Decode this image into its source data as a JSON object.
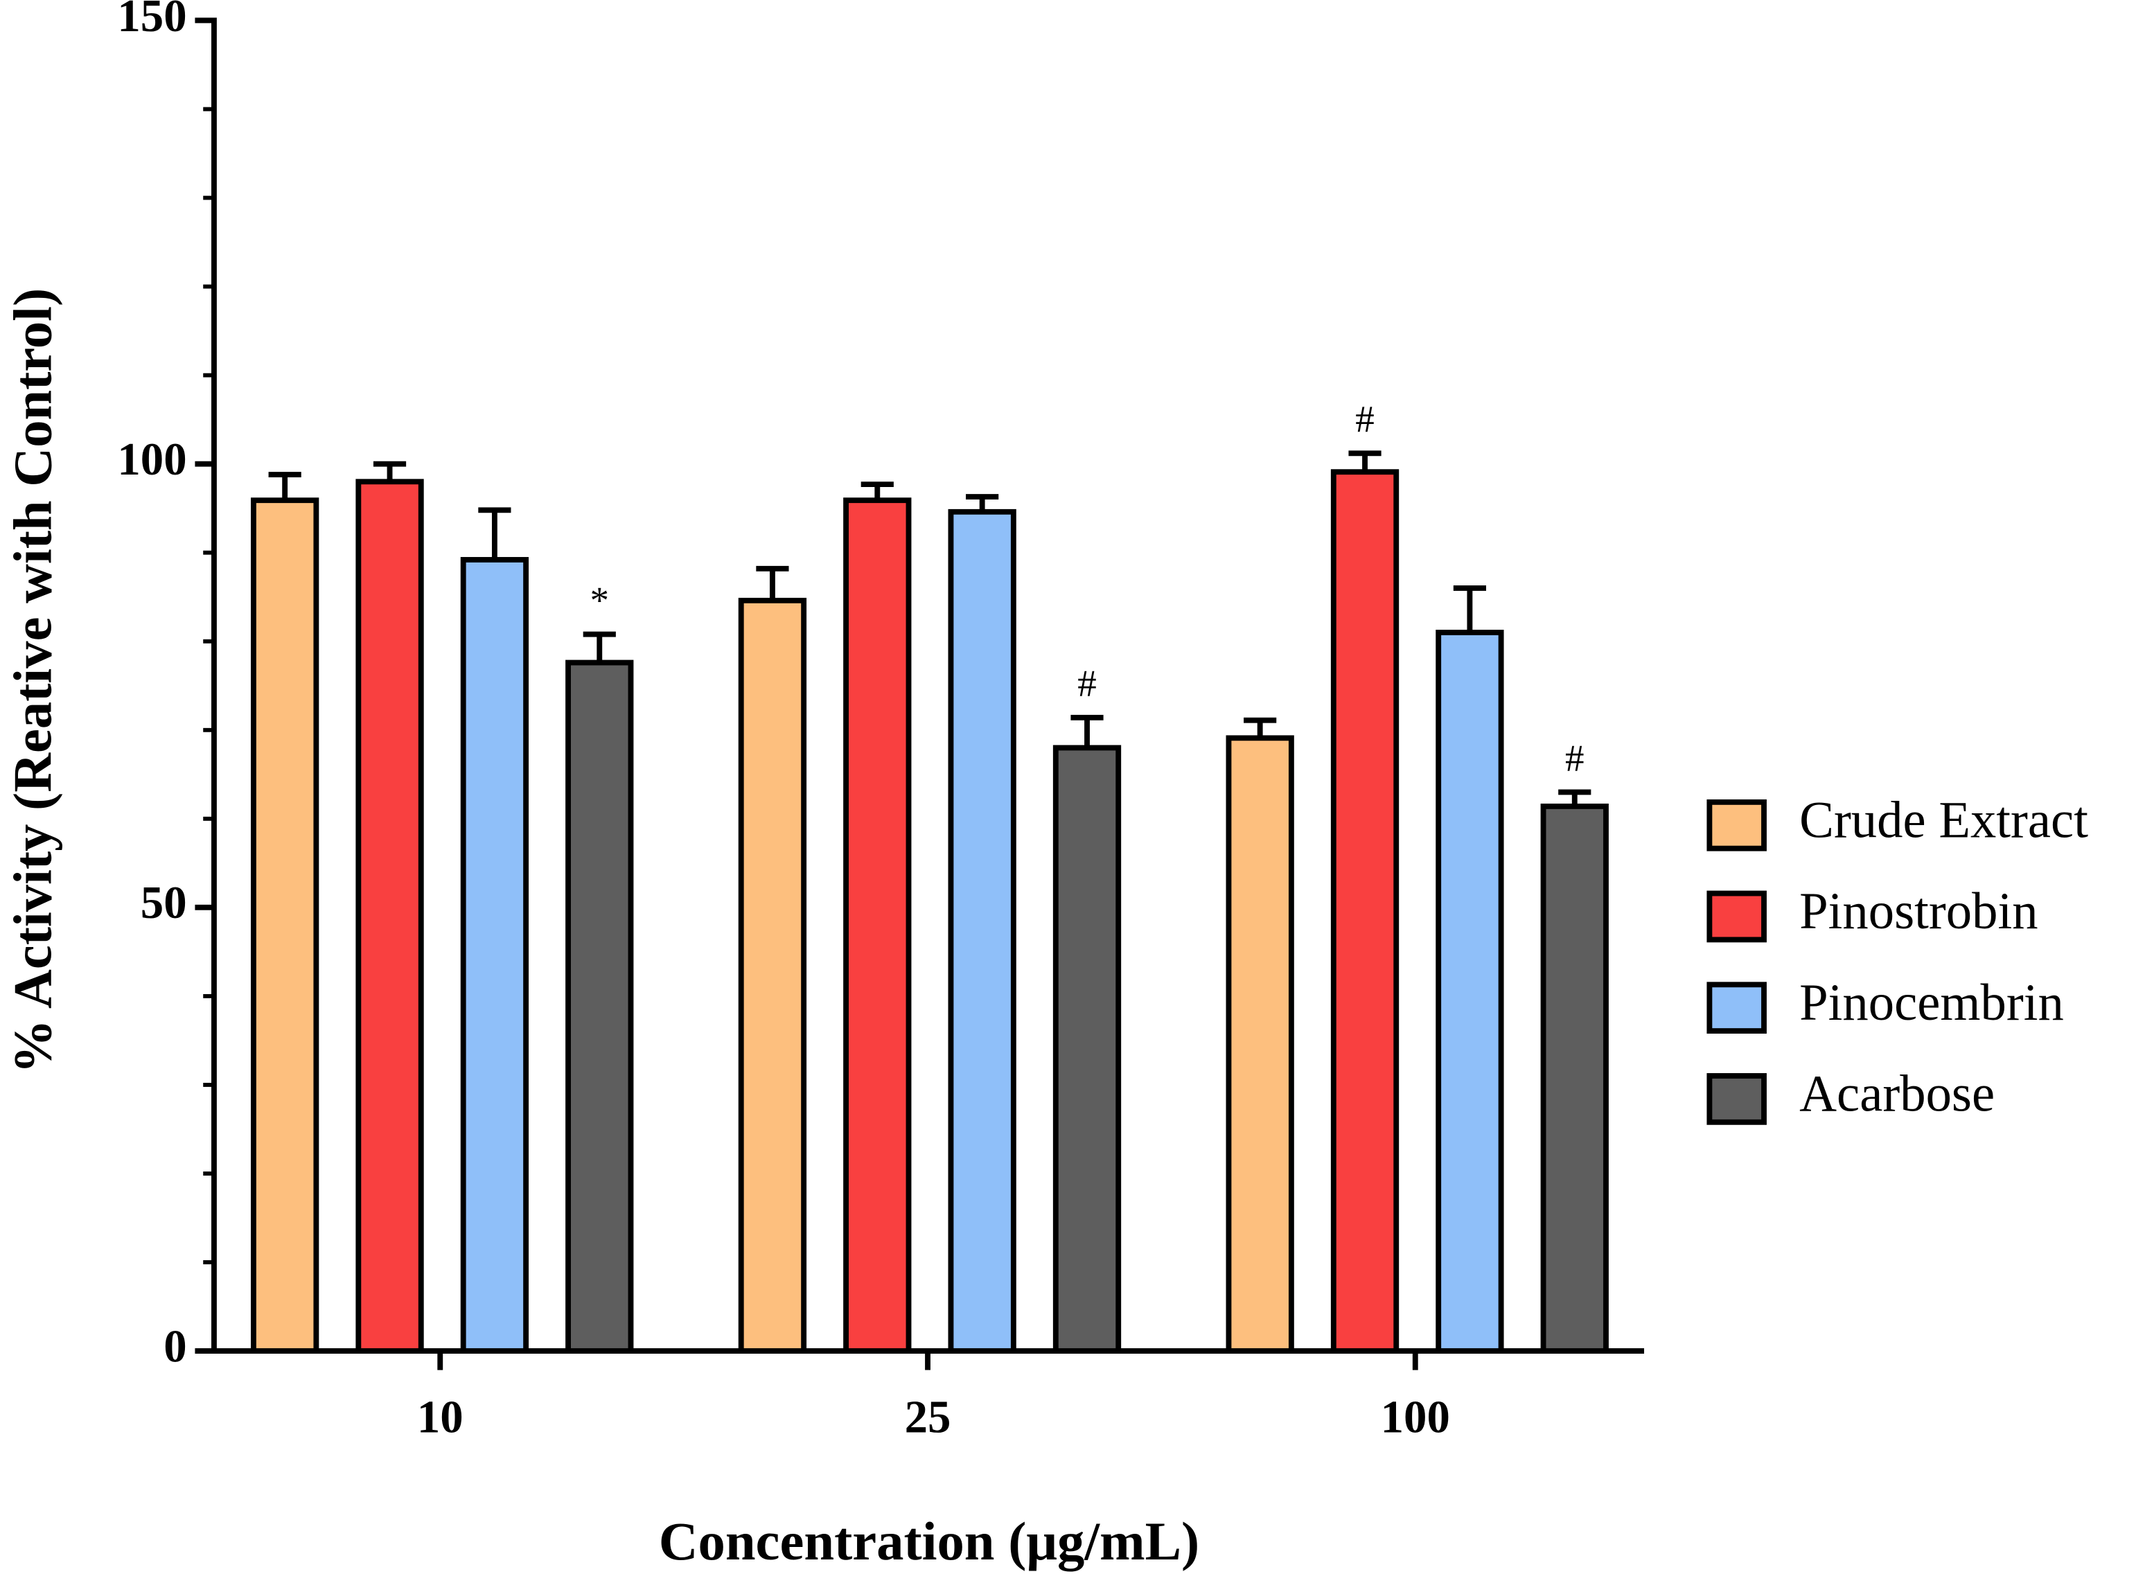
{
  "chart_data": {
    "type": "bar",
    "x_label": "Concentration (μg/mL)",
    "y_label": "% Activity (Reative with Control)",
    "categories": [
      "10",
      "25",
      "100"
    ],
    "series": [
      {
        "name": "Crude Extract",
        "color": "#FDBF7E",
        "values": [
          95.9,
          84.6,
          69.1
        ],
        "errors": [
          2.9,
          3.6,
          2.0
        ],
        "annotations": [
          null,
          null,
          null
        ]
      },
      {
        "name": "Pinostrobin",
        "color": "#F94040",
        "values": [
          98.0,
          95.9,
          99.1
        ],
        "errors": [
          2.0,
          1.8,
          2.1
        ],
        "annotations": [
          null,
          null,
          "#"
        ]
      },
      {
        "name": "Pinocembrin",
        "color": "#8FBFF9",
        "values": [
          89.2,
          94.6,
          81.0
        ],
        "errors": [
          5.6,
          1.7,
          5.0
        ],
        "annotations": [
          null,
          null,
          null
        ]
      },
      {
        "name": "Acarbose",
        "color": "#5E5E5E",
        "values": [
          77.6,
          68.0,
          61.4
        ],
        "errors": [
          3.2,
          3.4,
          1.6
        ],
        "annotations": [
          "*",
          "#",
          "#"
        ]
      }
    ],
    "ylim": [
      0,
      150
    ],
    "yticks": [
      0,
      50,
      100,
      150
    ],
    "minor_yticks": [
      10,
      20,
      30,
      40,
      60,
      70,
      80,
      90,
      110,
      120,
      130,
      140
    ],
    "legend": "right"
  }
}
